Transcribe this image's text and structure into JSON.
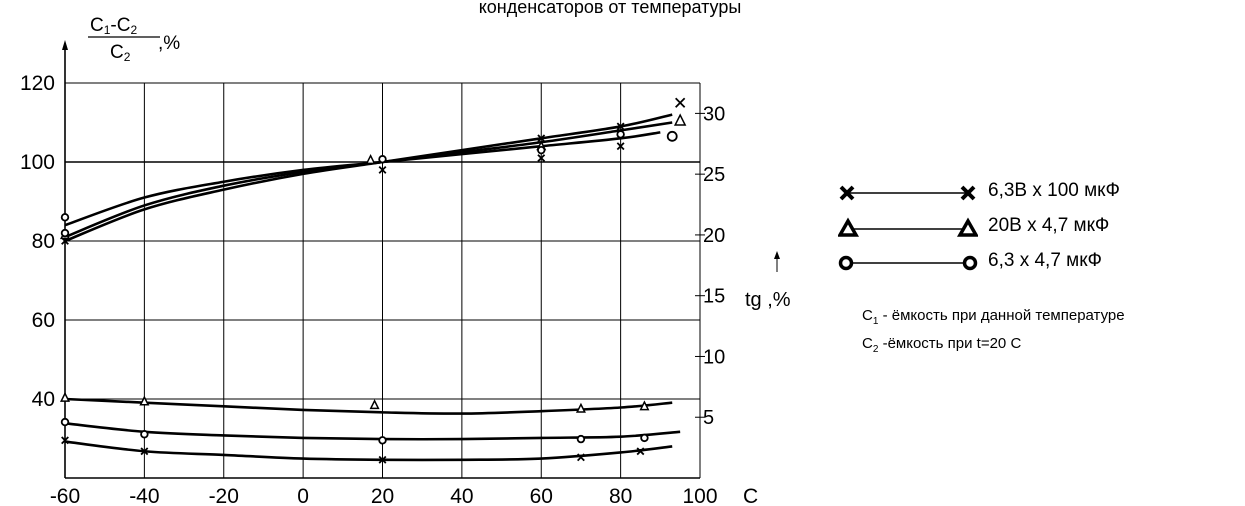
{
  "title": "конденсаторов от температуры",
  "chart_data": {
    "type": "line",
    "y_label": {
      "num_a": "C",
      "num_a_sub": "1",
      "num_dash": "-",
      "num_b": "C",
      "num_b_sub": "2",
      "den": "C",
      "den_sub": "2",
      "unit": ",%"
    },
    "y2_label": "tg  ,%",
    "x_unit_label": "C",
    "x_ticks": [
      "-60",
      "-40",
      "-20",
      "0",
      "20",
      "40",
      "60",
      "80",
      "100"
    ],
    "y_ticks": [
      "40",
      "60",
      "80",
      "100",
      "120"
    ],
    "y2_ticks": [
      "5",
      "10",
      "15",
      "20",
      "25",
      "30"
    ],
    "xlim": [
      -60,
      100
    ],
    "ylim": [
      20,
      120
    ],
    "y2lim": [
      0,
      32.5
    ],
    "grid": true,
    "capacitance_series": [
      {
        "marker": "cross",
        "x": [
          -60,
          -40,
          -20,
          0,
          20,
          40,
          60,
          80,
          93
        ],
        "y": [
          80,
          88,
          93,
          97,
          100,
          103,
          106,
          109,
          112
        ]
      },
      {
        "marker": "triangle",
        "x": [
          -60,
          -40,
          -20,
          0,
          20,
          40,
          60,
          80,
          93
        ],
        "y": [
          81,
          89,
          94,
          97.5,
          100,
          102.5,
          105,
          108,
          110
        ]
      },
      {
        "marker": "circle",
        "x": [
          -60,
          -40,
          -20,
          0,
          20,
          40,
          60,
          80,
          90
        ],
        "y": [
          84,
          91,
          95,
          98,
          100,
          102,
          104,
          106,
          107.5
        ]
      }
    ],
    "tg_series": [
      {
        "marker": "triangle",
        "x": [
          -60,
          -40,
          -20,
          0,
          20,
          40,
          60,
          80,
          93
        ],
        "y": [
          6.5,
          6.2,
          5.9,
          5.6,
          5.4,
          5.3,
          5.5,
          5.8,
          6.2
        ]
      },
      {
        "marker": "circle",
        "x": [
          -60,
          -40,
          -20,
          0,
          20,
          40,
          60,
          80,
          95
        ],
        "y": [
          4.5,
          3.8,
          3.5,
          3.3,
          3.2,
          3.2,
          3.3,
          3.4,
          3.8
        ]
      },
      {
        "marker": "cross",
        "x": [
          -60,
          -40,
          -20,
          0,
          20,
          40,
          60,
          80,
          93
        ],
        "y": [
          3.0,
          2.2,
          1.9,
          1.6,
          1.5,
          1.5,
          1.6,
          2.1,
          2.6
        ]
      }
    ],
    "point_markers": [
      {
        "marker": "cross",
        "x": -60,
        "y": 80
      },
      {
        "marker": "triangle",
        "x": -60,
        "y": 81.5
      },
      {
        "marker": "circle",
        "x": -60,
        "y": 86
      },
      {
        "marker": "circle",
        "x": -60,
        "y": 82
      },
      {
        "marker": "triangle",
        "x": 17,
        "y": 100.5
      },
      {
        "marker": "circle",
        "x": 20,
        "y": 100.7
      },
      {
        "marker": "cross",
        "x": 20,
        "y": 98
      },
      {
        "marker": "cross",
        "x": 60,
        "y": 106
      },
      {
        "marker": "triangle",
        "x": 60,
        "y": 104
      },
      {
        "marker": "circle",
        "x": 60,
        "y": 103
      },
      {
        "marker": "cross",
        "x": 60,
        "y": 101
      },
      {
        "marker": "cross",
        "x": 80,
        "y": 109
      },
      {
        "marker": "circle",
        "x": 80,
        "y": 107
      },
      {
        "marker": "cross",
        "x": 80,
        "y": 104
      },
      {
        "marker": "cross",
        "x": 95,
        "y": 115
      },
      {
        "marker": "triangle",
        "x": 95,
        "y": 110.5
      },
      {
        "marker": "circle",
        "x": 93,
        "y": 106.5
      },
      {
        "marker": "triangle",
        "x": -60,
        "y2": 6.6,
        "axis": "y2"
      },
      {
        "marker": "triangle",
        "x": -40,
        "y2": 6.3,
        "axis": "y2"
      },
      {
        "marker": "triangle",
        "x": 18,
        "y2": 6.0,
        "axis": "y2"
      },
      {
        "marker": "triangle",
        "x": 70,
        "y2": 5.7,
        "axis": "y2"
      },
      {
        "marker": "triangle",
        "x": 86,
        "y2": 5.9,
        "axis": "y2"
      },
      {
        "marker": "circle",
        "x": -60,
        "y2": 4.6,
        "axis": "y2"
      },
      {
        "marker": "circle",
        "x": -40,
        "y2": 3.6,
        "axis": "y2"
      },
      {
        "marker": "circle",
        "x": 20,
        "y2": 3.1,
        "axis": "y2"
      },
      {
        "marker": "circle",
        "x": 70,
        "y2": 3.2,
        "axis": "y2"
      },
      {
        "marker": "circle",
        "x": 86,
        "y2": 3.3,
        "axis": "y2"
      },
      {
        "marker": "cross",
        "x": -60,
        "y2": 3.1,
        "axis": "y2"
      },
      {
        "marker": "cross",
        "x": -40,
        "y2": 2.2,
        "axis": "y2"
      },
      {
        "marker": "cross",
        "x": 20,
        "y2": 1.5,
        "axis": "y2"
      },
      {
        "marker": "cross",
        "x": 70,
        "y2": 1.7,
        "axis": "y2"
      },
      {
        "marker": "cross",
        "x": 85,
        "y2": 2.2,
        "axis": "y2"
      }
    ]
  },
  "legend": [
    {
      "marker": "cross",
      "label": "6,3В х 100 мкФ"
    },
    {
      "marker": "triangle",
      "label": "20В х 4,7 мкФ"
    },
    {
      "marker": "circle",
      "label": "6,3 х 4,7 мкФ"
    }
  ],
  "notes": {
    "c1": "С",
    "c1_sub": "1",
    "c1_text": " - ёмкость при данной температуре",
    "c2": "С",
    "c2_sub": "2",
    "c2_text": " -ёмкость при t=20  С"
  }
}
